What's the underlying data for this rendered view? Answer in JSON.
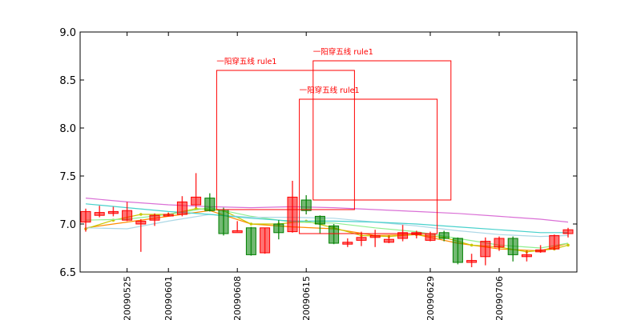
{
  "chart_data": {
    "type": "candlestick",
    "title": "",
    "xlabel": "",
    "ylabel": "",
    "ylim": [
      6.5,
      9.0
    ],
    "y_ticks": [
      "6.5",
      "7.0",
      "7.5",
      "8.0",
      "8.5",
      "9.0"
    ],
    "x_labels": [
      {
        "index": 3,
        "label": "20090525"
      },
      {
        "index": 6,
        "label": "20090601"
      },
      {
        "index": 11,
        "label": "20090608"
      },
      {
        "index": 16,
        "label": "20090615"
      },
      {
        "index": 25,
        "label": "20090629"
      },
      {
        "index": 30,
        "label": "20090706"
      }
    ],
    "grid": false,
    "colors": {
      "up": "#ff0000",
      "down": "#008000",
      "annotation": "#ff0000"
    },
    "candles": [
      {
        "open": 7.02,
        "close": 7.13,
        "high": 7.16,
        "low": 6.92
      },
      {
        "open": 7.09,
        "close": 7.12,
        "high": 7.19,
        "low": 7.07
      },
      {
        "open": 7.11,
        "close": 7.13,
        "high": 7.18,
        "low": 7.08
      },
      {
        "open": 7.04,
        "close": 7.14,
        "high": 7.23,
        "low": 7.03
      },
      {
        "open": 7.0,
        "close": 7.03,
        "high": 7.05,
        "low": 6.71
      },
      {
        "open": 7.04,
        "close": 7.09,
        "high": 7.11,
        "low": 6.98
      },
      {
        "open": 7.09,
        "close": 7.1,
        "high": 7.12,
        "low": 7.08
      },
      {
        "open": 7.1,
        "close": 7.23,
        "high": 7.29,
        "low": 7.08
      },
      {
        "open": 7.2,
        "close": 7.28,
        "high": 7.53,
        "low": 7.17
      },
      {
        "open": 7.27,
        "close": 7.14,
        "high": 7.32,
        "low": 7.13
      },
      {
        "open": 7.15,
        "close": 6.9,
        "high": 7.17,
        "low": 6.88
      },
      {
        "open": 6.91,
        "close": 6.93,
        "high": 7.03,
        "low": 6.92
      },
      {
        "open": 6.96,
        "close": 6.68,
        "high": 6.97,
        "low": 6.67
      },
      {
        "open": 6.7,
        "close": 6.96,
        "high": 6.96,
        "low": 6.69
      },
      {
        "open": 7.0,
        "close": 6.91,
        "high": 7.04,
        "low": 6.84
      },
      {
        "open": 6.92,
        "close": 7.28,
        "high": 7.45,
        "low": 6.91
      },
      {
        "open": 7.25,
        "close": 7.14,
        "high": 7.3,
        "low": 7.1
      },
      {
        "open": 7.08,
        "close": 7.0,
        "high": 7.09,
        "low": 6.9
      },
      {
        "open": 6.98,
        "close": 6.8,
        "high": 7.0,
        "low": 6.79
      },
      {
        "open": 6.79,
        "close": 6.81,
        "high": 6.85,
        "low": 6.76
      },
      {
        "open": 6.83,
        "close": 6.86,
        "high": 6.92,
        "low": 6.77
      },
      {
        "open": 6.86,
        "close": 6.88,
        "high": 6.94,
        "low": 6.76
      },
      {
        "open": 6.81,
        "close": 6.84,
        "high": 6.88,
        "low": 6.8
      },
      {
        "open": 6.85,
        "close": 6.91,
        "high": 6.99,
        "low": 6.82
      },
      {
        "open": 6.89,
        "close": 6.91,
        "high": 6.93,
        "low": 6.85
      },
      {
        "open": 6.83,
        "close": 6.9,
        "high": 6.92,
        "low": 6.82
      },
      {
        "open": 6.91,
        "close": 6.85,
        "high": 6.93,
        "low": 6.82
      },
      {
        "open": 6.85,
        "close": 6.6,
        "high": 6.86,
        "low": 6.58
      },
      {
        "open": 6.6,
        "close": 6.62,
        "high": 6.69,
        "low": 6.55
      },
      {
        "open": 6.66,
        "close": 6.82,
        "high": 6.86,
        "low": 6.57
      },
      {
        "open": 6.76,
        "close": 6.85,
        "high": 6.87,
        "low": 6.72
      },
      {
        "open": 6.85,
        "close": 6.68,
        "high": 6.87,
        "low": 6.61
      },
      {
        "open": 6.66,
        "close": 6.68,
        "high": 6.72,
        "low": 6.61
      },
      {
        "open": 6.71,
        "close": 6.73,
        "high": 6.78,
        "low": 6.7
      },
      {
        "open": 6.74,
        "close": 6.88,
        "high": 6.89,
        "low": 6.73
      },
      {
        "open": 6.9,
        "close": 6.94,
        "high": 6.96,
        "low": 6.86
      }
    ],
    "moving_averages": [
      {
        "color": "#ff8c00",
        "x": [
          0,
          3,
          6,
          9,
          12,
          15,
          18,
          21,
          24,
          27,
          30,
          33,
          35
        ],
        "values": [
          6.96,
          7.02,
          7.08,
          7.14,
          7.0,
          6.97,
          6.95,
          6.88,
          6.89,
          6.8,
          6.74,
          6.72,
          6.8
        ]
      },
      {
        "color": "#c8c800",
        "x": [
          0,
          2,
          4,
          6,
          8,
          10,
          12,
          14,
          16,
          18,
          20,
          22,
          24,
          26,
          28,
          30,
          32,
          34,
          35
        ],
        "values": [
          6.95,
          7.04,
          7.1,
          7.1,
          7.16,
          7.14,
          7.0,
          7.0,
          7.03,
          6.96,
          6.88,
          6.87,
          6.89,
          6.86,
          6.78,
          6.76,
          6.71,
          6.74,
          6.78
        ]
      },
      {
        "color": "#90ee90",
        "x": [
          0,
          3,
          6,
          9,
          12,
          15,
          18,
          21,
          24,
          27,
          30,
          33,
          35
        ],
        "values": [
          7.04,
          7.05,
          7.1,
          7.17,
          7.08,
          7.02,
          7.01,
          6.96,
          6.92,
          6.85,
          6.78,
          6.75,
          6.8
        ]
      },
      {
        "color": "#add8e6",
        "x": [
          0,
          3,
          6,
          9,
          12,
          15,
          18,
          21,
          24,
          27,
          30,
          33,
          35
        ],
        "values": [
          6.96,
          6.95,
          7.03,
          7.1,
          7.07,
          7.07,
          7.06,
          7.02,
          6.98,
          6.93,
          6.89,
          6.87,
          6.88
        ]
      },
      {
        "color": "#48d1cc",
        "x": [
          0,
          3,
          6,
          9,
          12,
          15,
          18,
          21,
          24,
          27,
          30,
          33,
          35
        ],
        "values": [
          7.21,
          7.17,
          7.13,
          7.1,
          7.06,
          7.03,
          7.03,
          7.02,
          7.0,
          6.97,
          6.94,
          6.91,
          6.91
        ]
      },
      {
        "color": "#da70d6",
        "x": [
          0,
          3,
          6,
          9,
          12,
          15,
          18,
          21,
          24,
          27,
          30,
          33,
          35
        ],
        "values": [
          7.27,
          7.23,
          7.2,
          7.18,
          7.17,
          7.18,
          7.17,
          7.15,
          7.13,
          7.11,
          7.08,
          7.05,
          7.02
        ]
      }
    ],
    "annotations": [
      {
        "text": "一阳穿五线 rule1",
        "x0": 9.5,
        "x1": 19.5,
        "y0": 7.15,
        "y1": 8.6
      },
      {
        "text": "一阳穿五线 rule1",
        "x0": 16.5,
        "x1": 26.5,
        "y0": 7.25,
        "y1": 8.7
      },
      {
        "text": "一阳穿五线 rule1",
        "x0": 15.5,
        "x1": 25.5,
        "y0": 6.9,
        "y1": 8.3
      }
    ]
  }
}
